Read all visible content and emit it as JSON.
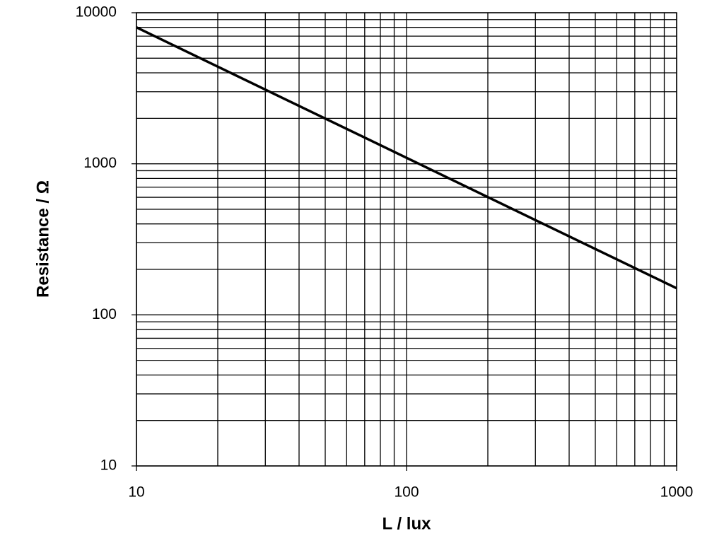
{
  "chart_data": {
    "type": "line",
    "xlabel": "L / lux",
    "ylabel": "Resistance / Ω",
    "x": [
      10,
      1000
    ],
    "series": [
      {
        "color": "#000000",
        "values": [
          8000,
          150
        ]
      }
    ],
    "xscale": "log",
    "yscale": "log",
    "xlim": [
      10,
      1000
    ],
    "ylim": [
      10,
      10000
    ],
    "xticks": [
      10,
      100,
      1000
    ],
    "yticks": [
      10,
      100,
      1000,
      10000
    ],
    "x_minor_ticks": [
      20,
      30,
      40,
      50,
      60,
      70,
      80,
      90,
      200,
      300,
      400,
      500,
      600,
      700,
      800,
      900
    ],
    "y_minor_ticks": [
      20,
      30,
      40,
      50,
      60,
      70,
      80,
      90,
      200,
      300,
      400,
      500,
      600,
      700,
      800,
      900,
      2000,
      3000,
      4000,
      5000,
      6000,
      7000,
      8000,
      9000
    ],
    "grid": true
  }
}
